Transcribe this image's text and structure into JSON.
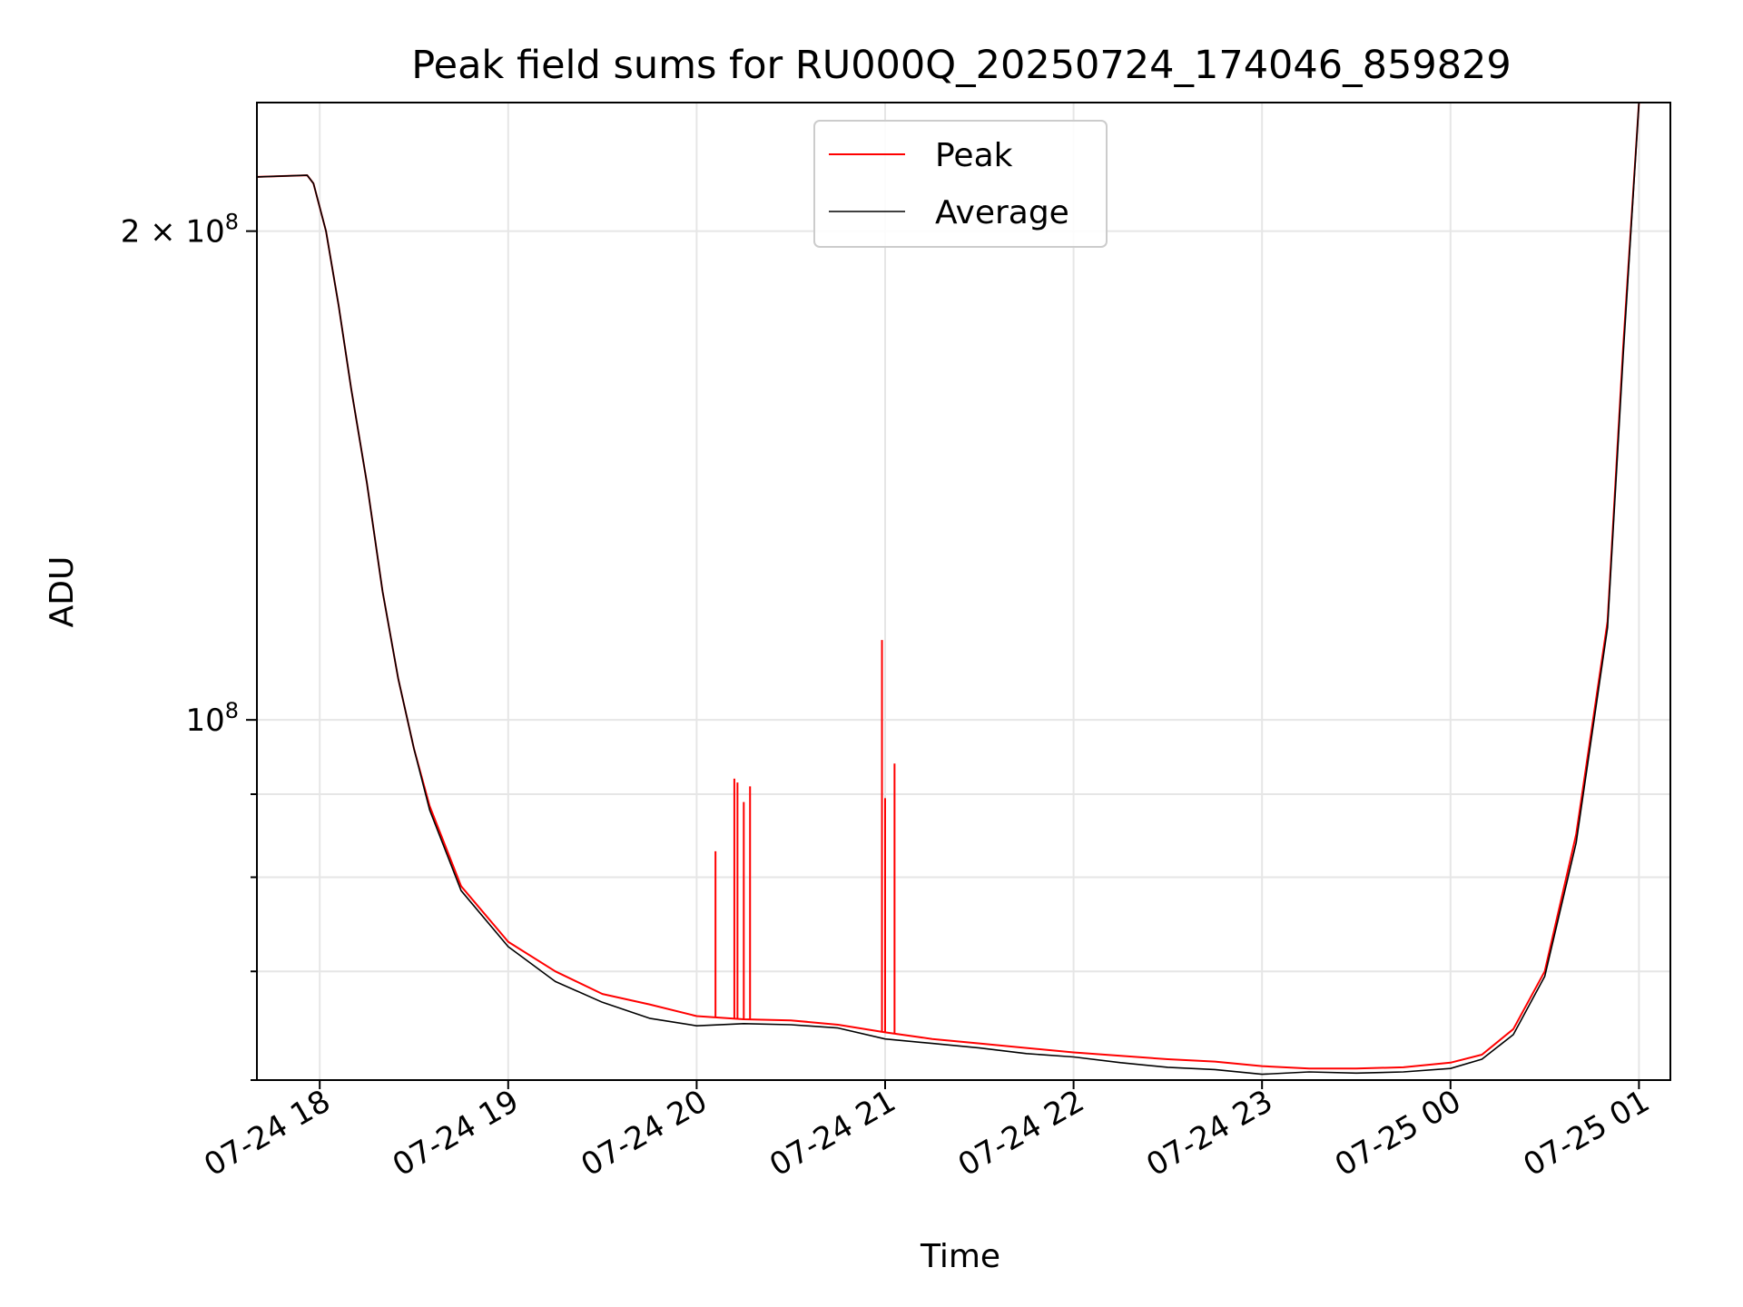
{
  "chart_data": {
    "type": "line",
    "title": "Peak field sums for RU000Q_20250724_174046_859829",
    "xlabel": "Time",
    "ylabel": "ADU",
    "yscale": "log",
    "xlim": [
      "2025-07-24 17:40",
      "2025-07-25 01:10"
    ],
    "ylim": [
      60000000,
      240000000
    ],
    "x_ticks": [
      {
        "value": "2025-07-24 18:00",
        "label": "07-24 18"
      },
      {
        "value": "2025-07-24 19:00",
        "label": "07-24 19"
      },
      {
        "value": "2025-07-24 20:00",
        "label": "07-24 20"
      },
      {
        "value": "2025-07-24 21:00",
        "label": "07-24 21"
      },
      {
        "value": "2025-07-24 22:00",
        "label": "07-24 22"
      },
      {
        "value": "2025-07-24 23:00",
        "label": "07-24 23"
      },
      {
        "value": "2025-07-25 00:00",
        "label": "07-25 00"
      },
      {
        "value": "2025-07-25 01:00",
        "label": "07-25 01"
      }
    ],
    "y_ticks_major": [
      {
        "value": 100000000,
        "base": "10",
        "exp": "8"
      },
      {
        "value": 200000000,
        "base": "2 × 10",
        "exp": "8"
      }
    ],
    "y_ticks_minor": [
      60000000,
      70000000,
      80000000,
      90000000
    ],
    "grid": true,
    "legend_position": "top-center",
    "series": [
      {
        "name": "Peak",
        "color": "#ff0000",
        "x": [
          "2025-07-24 17:40",
          "2025-07-24 17:56",
          "2025-07-24 17:58",
          "2025-07-24 18:02",
          "2025-07-24 18:06",
          "2025-07-24 18:10",
          "2025-07-24 18:15",
          "2025-07-24 18:20",
          "2025-07-24 18:25",
          "2025-07-24 18:30",
          "2025-07-24 18:35",
          "2025-07-24 18:45",
          "2025-07-24 19:00",
          "2025-07-24 19:15",
          "2025-07-24 19:30",
          "2025-07-24 19:45",
          "2025-07-24 20:00",
          "2025-07-24 20:15",
          "2025-07-24 20:30",
          "2025-07-24 20:45",
          "2025-07-24 21:00",
          "2025-07-24 21:15",
          "2025-07-24 21:30",
          "2025-07-24 21:45",
          "2025-07-24 22:00",
          "2025-07-24 22:15",
          "2025-07-24 22:30",
          "2025-07-24 22:45",
          "2025-07-24 23:00",
          "2025-07-24 23:15",
          "2025-07-24 23:30",
          "2025-07-24 23:45",
          "2025-07-25 00:00",
          "2025-07-25 00:10",
          "2025-07-25 00:20",
          "2025-07-25 00:30",
          "2025-07-25 00:40",
          "2025-07-25 00:50",
          "2025-07-25 00:55",
          "2025-07-25 01:00"
        ],
        "y": [
          216000000,
          216500000,
          214000000,
          200000000,
          180000000,
          160000000,
          140000000,
          120000000,
          106000000,
          96000000,
          88500000,
          79000000,
          73000000,
          70000000,
          67800000,
          66800000,
          65700000,
          65400000,
          65300000,
          64900000,
          64200000,
          63600000,
          63200000,
          62800000,
          62400000,
          62100000,
          61800000,
          61600000,
          61200000,
          61000000,
          61000000,
          61100000,
          61500000,
          62200000,
          64500000,
          70000000,
          85000000,
          115000000,
          170000000,
          240000000
        ]
      },
      {
        "name": "Average",
        "color": "#000000",
        "x": [
          "2025-07-24 17:40",
          "2025-07-24 17:56",
          "2025-07-24 17:58",
          "2025-07-24 18:02",
          "2025-07-24 18:06",
          "2025-07-24 18:10",
          "2025-07-24 18:15",
          "2025-07-24 18:20",
          "2025-07-24 18:25",
          "2025-07-24 18:30",
          "2025-07-24 18:35",
          "2025-07-24 18:45",
          "2025-07-24 19:00",
          "2025-07-24 19:15",
          "2025-07-24 19:30",
          "2025-07-24 19:45",
          "2025-07-24 20:00",
          "2025-07-24 20:15",
          "2025-07-24 20:30",
          "2025-07-24 20:45",
          "2025-07-24 21:00",
          "2025-07-24 21:15",
          "2025-07-24 21:30",
          "2025-07-24 21:45",
          "2025-07-24 22:00",
          "2025-07-24 22:15",
          "2025-07-24 22:30",
          "2025-07-24 22:45",
          "2025-07-24 23:00",
          "2025-07-24 23:15",
          "2025-07-24 23:30",
          "2025-07-24 23:45",
          "2025-07-25 00:00",
          "2025-07-25 00:10",
          "2025-07-25 00:20",
          "2025-07-25 00:30",
          "2025-07-25 00:40",
          "2025-07-25 00:50",
          "2025-07-25 00:55",
          "2025-07-25 01:00"
        ],
        "y": [
          216000000,
          216500000,
          214000000,
          200000000,
          180000000,
          160000000,
          140000000,
          120000000,
          106000000,
          96000000,
          88000000,
          78500000,
          72500000,
          69000000,
          67000000,
          65500000,
          64800000,
          65000000,
          64900000,
          64600000,
          63600000,
          63200000,
          62800000,
          62300000,
          62000000,
          61500000,
          61100000,
          60900000,
          60500000,
          60700000,
          60600000,
          60700000,
          61000000,
          61800000,
          64000000,
          69500000,
          84000000,
          114000000,
          168000000,
          240000000
        ]
      }
    ],
    "peak_spikes": [
      {
        "x": "2025-07-24 20:06",
        "y": 83000000
      },
      {
        "x": "2025-07-24 20:12",
        "y": 92000000
      },
      {
        "x": "2025-07-24 20:13",
        "y": 91500000
      },
      {
        "x": "2025-07-24 20:15",
        "y": 89000000
      },
      {
        "x": "2025-07-24 20:17",
        "y": 91000000
      },
      {
        "x": "2025-07-24 20:59",
        "y": 112000000
      },
      {
        "x": "2025-07-24 21:00",
        "y": 89500000
      },
      {
        "x": "2025-07-24 21:03",
        "y": 94000000
      }
    ]
  }
}
